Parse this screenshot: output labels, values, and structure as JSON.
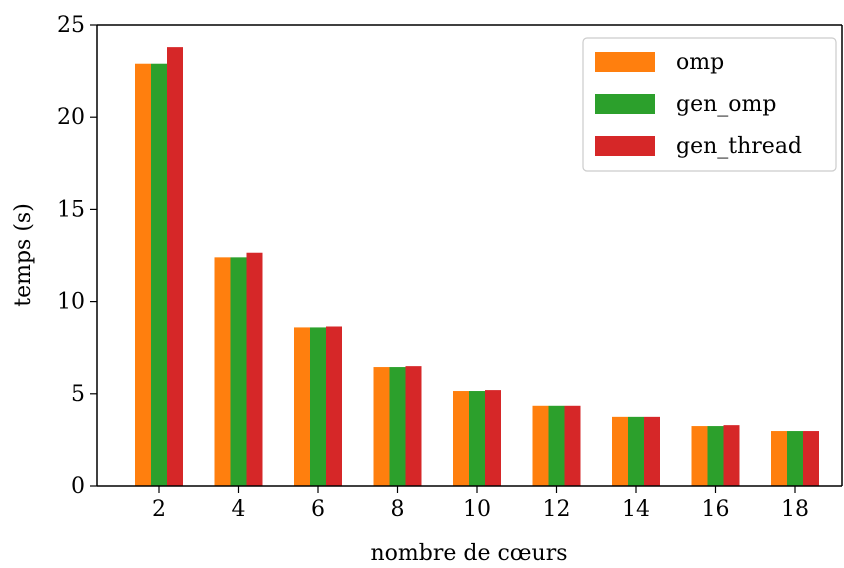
{
  "chart_data": {
    "type": "bar",
    "categories": [
      "2",
      "4",
      "6",
      "8",
      "10",
      "12",
      "14",
      "16",
      "18"
    ],
    "series": [
      {
        "name": "omp",
        "color": "#ff7f0e",
        "values": [
          22.9,
          12.4,
          8.6,
          6.45,
          5.15,
          4.35,
          3.75,
          3.25,
          2.98
        ]
      },
      {
        "name": "gen_omp",
        "color": "#2ca02c",
        "values": [
          22.9,
          12.4,
          8.6,
          6.45,
          5.15,
          4.35,
          3.75,
          3.25,
          2.98
        ]
      },
      {
        "name": "gen_thread",
        "color": "#d62728",
        "values": [
          23.8,
          12.65,
          8.65,
          6.5,
          5.2,
          4.35,
          3.75,
          3.3,
          2.98
        ]
      }
    ],
    "xlabel": "nombre de cœurs",
    "ylabel": "temps (s)",
    "ylim": [
      0,
      25
    ],
    "yticks": [
      "0",
      "5",
      "10",
      "15",
      "20",
      "25"
    ],
    "grid": false,
    "legend_position": "top-right"
  }
}
